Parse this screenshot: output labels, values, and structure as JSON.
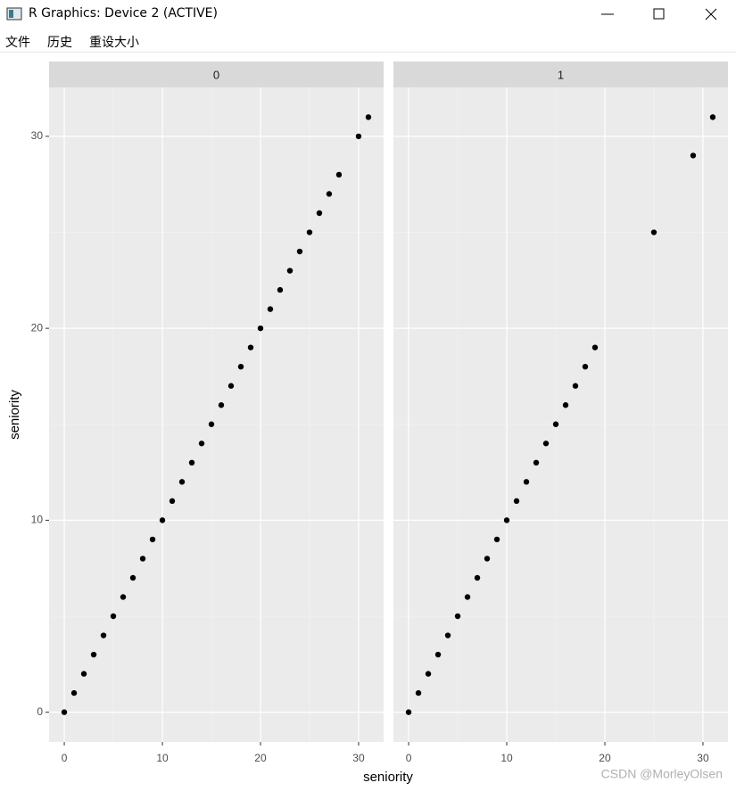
{
  "window": {
    "title": "R Graphics: Device 2 (ACTIVE)",
    "menu": [
      "文件",
      "历史",
      "重设大小"
    ]
  },
  "plot": {
    "xlabel": "seniority",
    "ylabel": "seniority"
  },
  "watermark": "CSDN @MorleyOlsen",
  "chart_data": [
    {
      "type": "scatter",
      "title": "0",
      "color": "#000000",
      "x": [
        0,
        1,
        2,
        3,
        4,
        5,
        6,
        7,
        8,
        9,
        10,
        11,
        12,
        13,
        14,
        15,
        16,
        17,
        18,
        19,
        20,
        21,
        22,
        23,
        24,
        25,
        26,
        27,
        28,
        30,
        31
      ],
      "y": [
        0,
        1,
        2,
        3,
        4,
        5,
        6,
        7,
        8,
        9,
        10,
        11,
        12,
        13,
        14,
        15,
        16,
        17,
        18,
        19,
        20,
        21,
        22,
        23,
        24,
        25,
        26,
        27,
        28,
        30,
        31
      ],
      "xlim": [
        -1.55,
        32.55
      ],
      "ylim": [
        -1.55,
        32.55
      ],
      "xticks": [
        0,
        10,
        20,
        30
      ],
      "yticks": [
        0,
        10,
        20,
        30
      ],
      "xminor": [
        5,
        15,
        25
      ],
      "yminor": [
        5,
        15,
        25
      ]
    },
    {
      "type": "scatter",
      "title": "1",
      "color": "#000000",
      "x": [
        0,
        1,
        2,
        3,
        4,
        5,
        6,
        7,
        8,
        9,
        10,
        11,
        12,
        13,
        14,
        15,
        16,
        17,
        18,
        19,
        25,
        29,
        31
      ],
      "y": [
        0,
        1,
        2,
        3,
        4,
        5,
        6,
        7,
        8,
        9,
        10,
        11,
        12,
        13,
        14,
        15,
        16,
        17,
        18,
        19,
        25,
        29,
        31
      ],
      "xlim": [
        -1.55,
        32.55
      ],
      "ylim": [
        -1.55,
        32.55
      ],
      "xticks": [
        0,
        10,
        20,
        30
      ],
      "yticks": [
        0,
        10,
        20,
        30
      ],
      "xminor": [
        5,
        15,
        25
      ],
      "yminor": [
        5,
        15,
        25
      ]
    }
  ]
}
